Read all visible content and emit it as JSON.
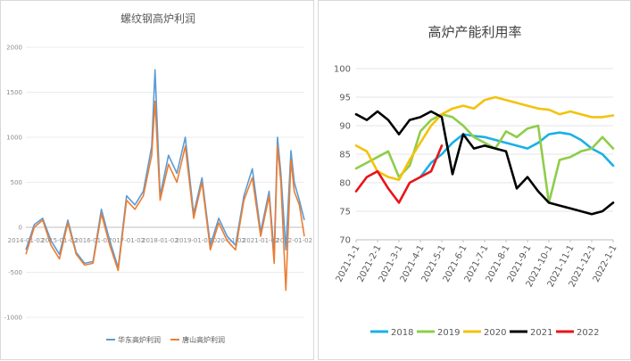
{
  "chart_data": [
    {
      "type": "line",
      "title": "螺纹钢高炉利润",
      "ylim": [
        -1000,
        2000
      ],
      "yticks": [
        2000,
        1500,
        1000,
        500,
        0,
        -500,
        -1000
      ],
      "xticks": [
        "2014-01-02",
        "2015-01-02",
        "2016-01-02",
        "2017-01-02",
        "2018-01-02",
        "2019-01-02",
        "2020-01-02",
        "2021-01-02",
        "2022-01-02"
      ],
      "x": [
        2014.0,
        2014.25,
        2014.5,
        2014.75,
        2015.0,
        2015.25,
        2015.5,
        2015.75,
        2016.0,
        2016.25,
        2016.5,
        2016.75,
        2017.0,
        2017.25,
        2017.5,
        2017.75,
        2017.85,
        2018.0,
        2018.25,
        2018.5,
        2018.75,
        2019.0,
        2019.25,
        2019.5,
        2019.75,
        2020.0,
        2020.25,
        2020.5,
        2020.75,
        2021.0,
        2021.25,
        2021.4,
        2021.5,
        2021.6,
        2021.75,
        2021.9,
        2022.0,
        2022.15,
        2022.3
      ],
      "series": [
        {
          "name": "华东高炉利润",
          "color": "#5b9bd5",
          "values": [
            -250,
            30,
            100,
            -150,
            -300,
            80,
            -280,
            -400,
            -380,
            200,
            -150,
            -450,
            350,
            250,
            400,
            900,
            1750,
            350,
            800,
            600,
            1000,
            150,
            550,
            -200,
            100,
            -100,
            -200,
            350,
            650,
            -50,
            400,
            -300,
            1000,
            600,
            -250,
            850,
            500,
            300,
            80
          ]
        },
        {
          "name": "唐山高炉利润",
          "color": "#ed7d31",
          "values": [
            -300,
            0,
            80,
            -200,
            -350,
            50,
            -300,
            -420,
            -400,
            150,
            -200,
            -480,
            300,
            200,
            350,
            800,
            1400,
            300,
            700,
            500,
            900,
            100,
            500,
            -250,
            50,
            -150,
            -250,
            300,
            550,
            -100,
            350,
            -400,
            900,
            500,
            -700,
            750,
            400,
            250,
            -100
          ]
        }
      ]
    },
    {
      "type": "line",
      "title": "高炉产能利用率",
      "ylim": [
        70,
        100
      ],
      "yticks": [
        100,
        95,
        90,
        85,
        80,
        75,
        70
      ],
      "categories": [
        "2021-1-1",
        "2021-2-1",
        "2021-3-1",
        "2021-4-1",
        "2021-5-1",
        "2021-6-1",
        "2021-7-1",
        "2021-8-1",
        "2021-9-1",
        "2021-10-1",
        "2021-11-1",
        "2021-12-1",
        "2022-1-1"
      ],
      "x": [
        0,
        0.5,
        1,
        1.5,
        2,
        2.5,
        3,
        3.5,
        4,
        4.5,
        5,
        5.5,
        6,
        6.5,
        7,
        7.5,
        8,
        8.5,
        9,
        9.5,
        10,
        10.5,
        11,
        11.5,
        12
      ],
      "series": [
        {
          "name": "2018",
          "color": "#1ab0e6",
          "values": [
            null,
            null,
            null,
            null,
            null,
            null,
            81,
            83.5,
            85,
            87,
            88.5,
            88.2,
            88,
            87.5,
            87,
            86.5,
            86,
            87,
            88.5,
            88.8,
            88.5,
            87.5,
            86,
            85,
            83
          ]
        },
        {
          "name": "2019",
          "color": "#8fcd4a",
          "values": [
            82.5,
            83.5,
            84.5,
            85.5,
            81,
            83,
            89,
            91,
            92,
            91.5,
            90,
            88,
            87,
            86,
            89,
            88,
            89.5,
            90,
            76.5,
            84,
            84.5,
            85.5,
            86,
            88,
            86
          ]
        },
        {
          "name": "2020",
          "color": "#f4c20d",
          "values": [
            86.5,
            85.5,
            82,
            81,
            80.5,
            84,
            87,
            90,
            92,
            93,
            93.5,
            93,
            94.5,
            95,
            94.5,
            94,
            93.5,
            93,
            92.8,
            92,
            92.5,
            92,
            91.5,
            91.5,
            91.8
          ]
        },
        {
          "name": "2021",
          "color": "#000000",
          "values": [
            92,
            91,
            92.5,
            91,
            88.5,
            91,
            91.5,
            92.5,
            91.5,
            81.5,
            88.5,
            86,
            86.5,
            86,
            85.5,
            79,
            81,
            78.5,
            76.5,
            76,
            75.5,
            75,
            74.5,
            75,
            76.5
          ]
        },
        {
          "name": "2022",
          "color": "#e8141a",
          "values": [
            78.5,
            81,
            82,
            79,
            76.5,
            80,
            81,
            82,
            86.5,
            null,
            null,
            null,
            null,
            null,
            null,
            null,
            null,
            null,
            null,
            null,
            null,
            null,
            null,
            null,
            null
          ]
        }
      ]
    }
  ]
}
